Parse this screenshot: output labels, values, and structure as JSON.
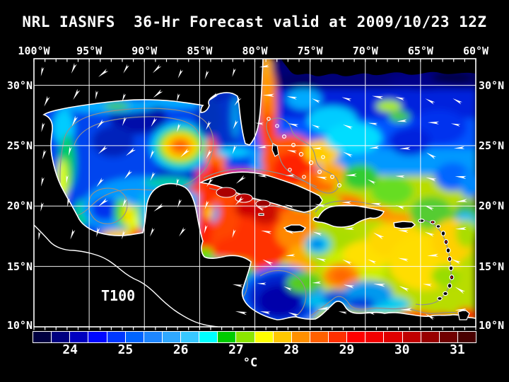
{
  "title": "NRL IASNFS  36-Hr Forecast valid at 2009/10/23 12Z",
  "map": {
    "variable_label": "T100",
    "lon_labels": [
      "100°W",
      "95°W",
      "90°W",
      "85°W",
      "80°W",
      "75°W",
      "70°W",
      "65°W",
      "60°W"
    ],
    "lat_labels": [
      "30°N",
      "25°N",
      "20°N",
      "15°N",
      "10°N"
    ],
    "graticule": "white 5-degree grid",
    "coastline_color": "#ffffff",
    "contour_color": "#909090",
    "wind_arrows": "white wind arrow overlay",
    "land_color": "#000000"
  },
  "colorbar": {
    "units": "°C",
    "tick_labels": [
      "24",
      "25",
      "26",
      "27",
      "28",
      "29",
      "30",
      "31"
    ],
    "cell_colors": [
      "#000040",
      "#000080",
      "#0000bf",
      "#0008ff",
      "#0038ff",
      "#0064ff",
      "#1e86ff",
      "#30a8ff",
      "#38c8ff",
      "#00ffff",
      "#00cc00",
      "#8ce600",
      "#ffff00",
      "#ffc800",
      "#ff9000",
      "#ff6000",
      "#ff3000",
      "#ff0000",
      "#f20000",
      "#e00000",
      "#c00000",
      "#980000",
      "#700000",
      "#480000"
    ]
  },
  "colors": {
    "background": "#000000",
    "text": "#ffffff",
    "border": "#ffffff"
  }
}
